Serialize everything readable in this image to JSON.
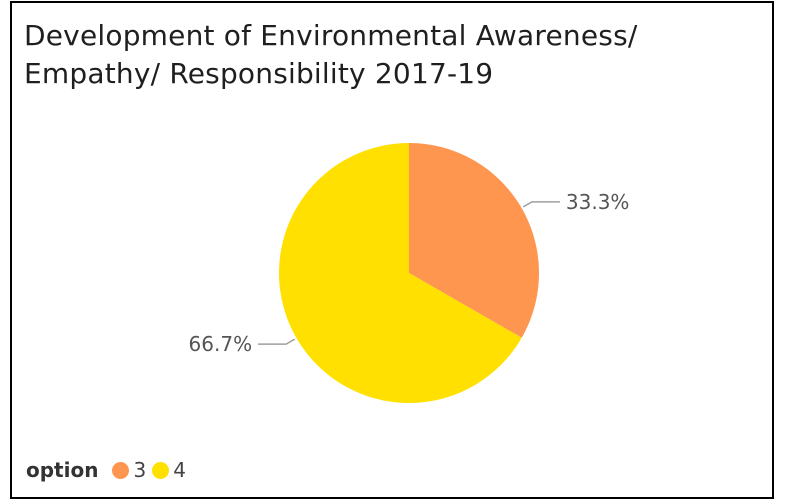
{
  "chart_data": {
    "type": "pie",
    "title_lines": [
      "Development of Environmental Awareness/",
      "Empathy/ Responsibility 2017-19"
    ],
    "legend_title": "option",
    "categories": [
      "3",
      "4"
    ],
    "values": [
      33.3,
      66.7
    ],
    "data_labels": [
      "33.3%",
      "66.7%"
    ],
    "colors": [
      "#FF9650",
      "#FFE000"
    ],
    "legend_placement": "bottom-left"
  }
}
